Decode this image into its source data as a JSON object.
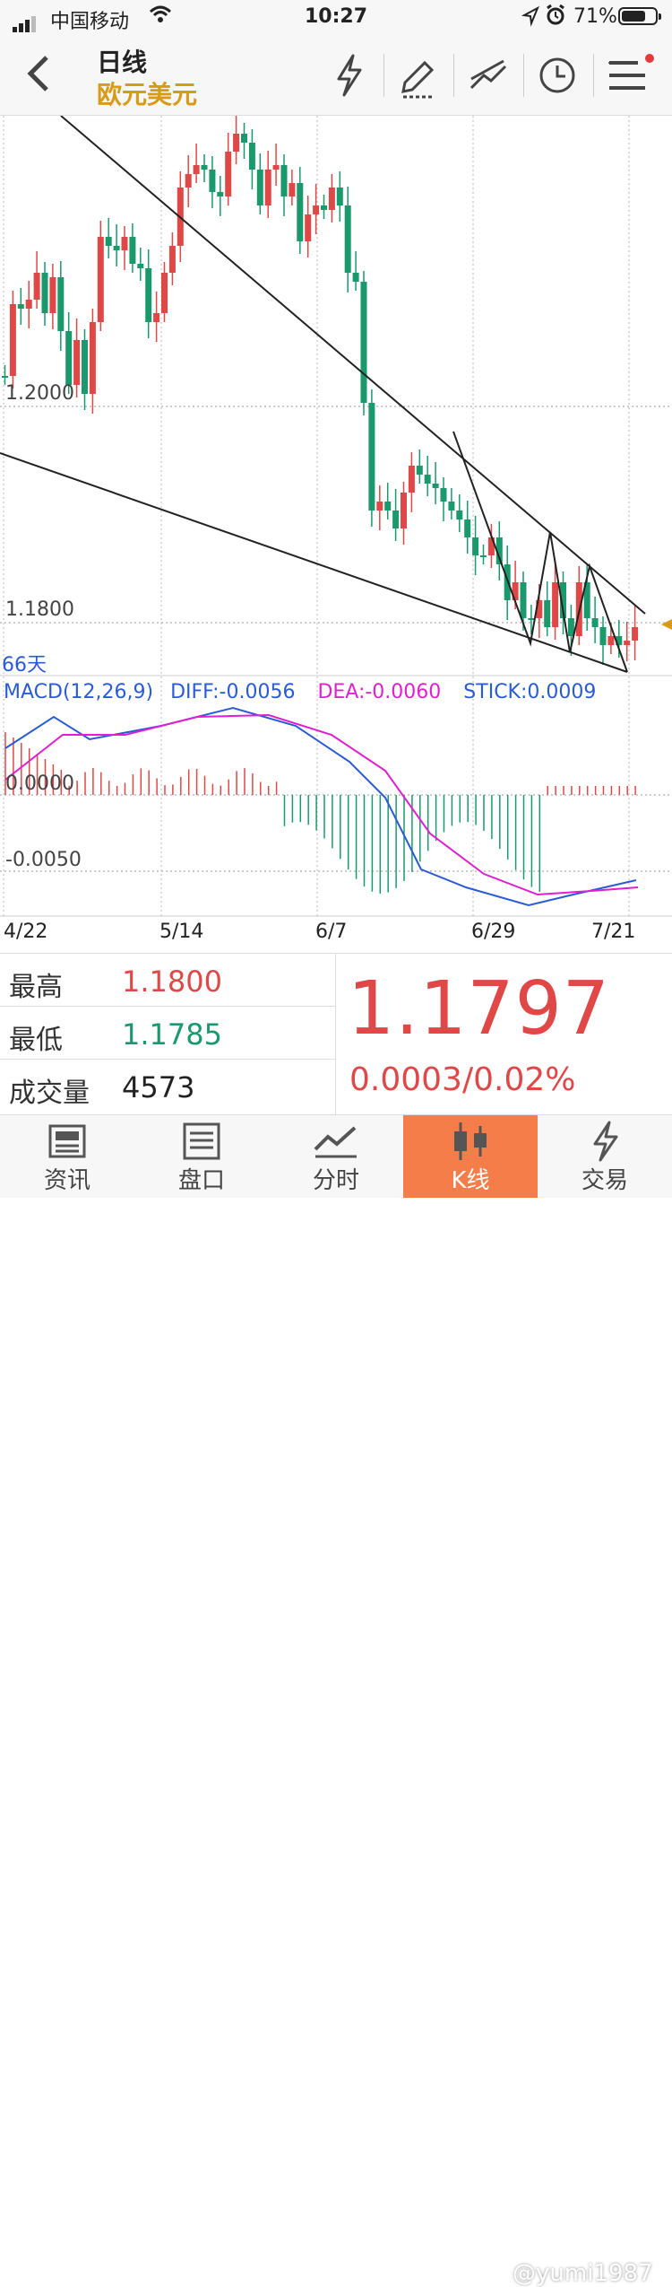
{
  "status_bar": {
    "carrier": "中国移动",
    "time": "10:27",
    "battery": "71%",
    "battery_level": 0.71
  },
  "nav": {
    "back_icon": "chevron-left-icon",
    "title": "日线",
    "subtitle": "欧元美元",
    "icons": [
      "lightning-icon",
      "pen-icon",
      "trendline-icon",
      "clock-icon",
      "menu-icon"
    ]
  },
  "main_chart": {
    "price_label_high": "1.2000",
    "price_label_low": "1.1800",
    "period_label": "66天"
  },
  "macd": {
    "title": "MACD(12,26,9)",
    "diff": "DIFF:-0.0056",
    "dea": "DEA:-0.0060",
    "stick": "STICK:0.0009",
    "zero_label": "0.0000",
    "neg_label": "-0.0050"
  },
  "date_axis": [
    "4/22",
    "5/14",
    "6/7",
    "6/29",
    "7/21"
  ],
  "info": {
    "rows": [
      {
        "label": "最高",
        "value": "1.1800",
        "color": "#e04747"
      },
      {
        "label": "最低",
        "value": "1.1785",
        "color": "#1a9a6c"
      },
      {
        "label": "成交量",
        "value": "4573",
        "color": "#222222"
      }
    ],
    "price": "1.1797",
    "change": "0.0003/0.02%"
  },
  "tabs": [
    {
      "label": "资讯",
      "icon": "news-icon"
    },
    {
      "label": "盘口",
      "icon": "orderbook-icon"
    },
    {
      "label": "分时",
      "icon": "timeshare-icon"
    },
    {
      "label": "K线",
      "icon": "candlestick-icon",
      "active": true
    },
    {
      "label": "交易",
      "icon": "trade-icon"
    }
  ],
  "watermark": "@yumi1987",
  "colors": {
    "up": "#e04747",
    "down": "#1a9a6c",
    "accent": "#d99a17",
    "active_tab": "#f47d4a",
    "diff_line": "#2a5bd7",
    "dea_line": "#e020d0"
  }
}
